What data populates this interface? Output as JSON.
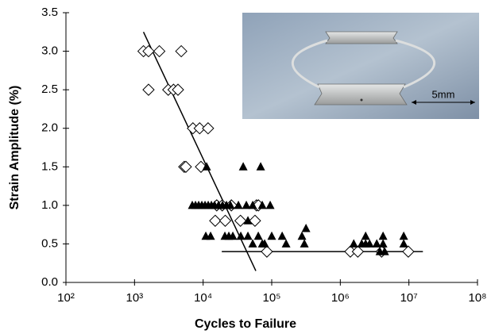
{
  "chart_data": {
    "type": "scatter",
    "xlabel": "Cycles to Failure",
    "ylabel": "Strain Amplitude (%)",
    "xscale": "log",
    "xlim": [
      100,
      100000000
    ],
    "xticks": [
      {
        "value": 100,
        "label": "10²"
      },
      {
        "value": 1000,
        "label": "10³"
      },
      {
        "value": 10000,
        "label": "10⁴"
      },
      {
        "value": 100000,
        "label": "10⁵"
      },
      {
        "value": 1000000,
        "label": "10⁶"
      },
      {
        "value": 10000000,
        "label": "10⁷"
      },
      {
        "value": 100000000,
        "label": "10⁸"
      }
    ],
    "ylim": [
      0,
      3.5
    ],
    "yticks": [
      {
        "value": 0,
        "label": "0.0"
      },
      0.5,
      {
        "value": 1,
        "label": "1.0"
      },
      1.5,
      {
        "value": 2,
        "label": "2.0"
      },
      2.5,
      {
        "value": 3,
        "label": "3.0"
      },
      3.5
    ],
    "series": [
      {
        "marker": "diamond",
        "color": "#000000",
        "x": [
          1350,
          1600,
          2300,
          4800,
          1600,
          3100,
          3700,
          4300,
          7100,
          8900,
          11800,
          5300,
          5600,
          9300,
          15800,
          19000,
          25800,
          60000,
          64000,
          15000,
          21000,
          35000,
          57000,
          85000,
          1400000,
          1800000,
          4000000,
          9800000
        ],
        "values": [
          3.0,
          3.0,
          3.0,
          3.0,
          2.5,
          2.5,
          2.5,
          2.5,
          2.0,
          2.0,
          2.0,
          1.5,
          1.5,
          1.5,
          1.0,
          1.0,
          1.0,
          1.0,
          1.0,
          0.8,
          0.8,
          0.8,
          0.8,
          0.4,
          0.4,
          0.4,
          0.4,
          0.4
        ]
      },
      {
        "marker": "triangle",
        "color": "#000000",
        "x": [
          6950,
          7740,
          8610,
          9580,
          10660,
          11860,
          13200,
          14690,
          16790,
          19180,
          21910,
          25040,
          32700,
          42660,
          52800,
          72800,
          95000,
          11240,
          38400,
          69000,
          10940,
          12850,
          20760,
          23700,
          27100,
          35400,
          45000,
          63700,
          100000,
          142000,
          276000,
          52800,
          72800,
          78800,
          162000,
          299000,
          316000,
          45000,
          1570000,
          2050000,
          2340000,
          2670000,
          3400000,
          4200000,
          8400000,
          2340000,
          4200000,
          8400000,
          3780000,
          4430000
        ],
        "values": [
          1.0,
          1.0,
          1.0,
          1.0,
          1.0,
          1.0,
          1.0,
          1.0,
          1.0,
          1.0,
          1.0,
          1.0,
          1.0,
          1.0,
          1.0,
          1.0,
          1.0,
          1.5,
          1.5,
          1.5,
          0.6,
          0.6,
          0.6,
          0.6,
          0.6,
          0.6,
          0.6,
          0.6,
          0.6,
          0.6,
          0.6,
          0.5,
          0.5,
          0.5,
          0.5,
          0.5,
          0.7,
          0.8,
          0.5,
          0.5,
          0.5,
          0.5,
          0.5,
          0.5,
          0.5,
          0.6,
          0.6,
          0.6,
          0.4,
          0.4
        ]
      }
    ],
    "lines": [
      {
        "color": "#000000",
        "x": [
          1350,
          58700
        ],
        "values": [
          3.25,
          0.15
        ]
      },
      {
        "color": "#000000",
        "x": [
          18700,
          16000000
        ],
        "values": [
          0.4,
          0.4
        ]
      }
    ],
    "inset_scale_label": "5mm"
  }
}
